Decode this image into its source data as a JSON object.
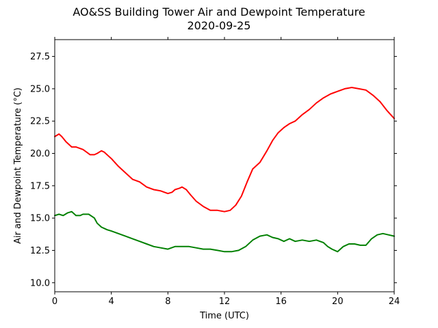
{
  "chart_data": {
    "type": "line",
    "title": "AO&SS Building Tower Air and Dewpoint Temperature",
    "subtitle": "2020-09-25",
    "xlabel": "Time (UTC)",
    "ylabel": "Air and Dewpoint Temperature (°C)",
    "xlim": [
      0,
      24
    ],
    "ylim": [
      9.3,
      28.8
    ],
    "xticks": [
      0,
      4,
      8,
      12,
      16,
      20,
      24
    ],
    "xtick_labels": [
      "0",
      "4",
      "8",
      "12",
      "16",
      "20",
      "24"
    ],
    "yticks": [
      10.0,
      12.5,
      15.0,
      17.5,
      20.0,
      22.5,
      25.0,
      27.5
    ],
    "ytick_labels": [
      "10.0",
      "12.5",
      "15.0",
      "17.5",
      "20.0",
      "22.5",
      "25.0",
      "27.5"
    ],
    "grid": false,
    "legend": "none",
    "series": [
      {
        "color": "#ff0000",
        "x": [
          0,
          0.3,
          0.5,
          0.8,
          1.2,
          1.5,
          2.0,
          2.5,
          2.8,
          3.0,
          3.3,
          3.5,
          3.8,
          4.0,
          4.5,
          5.0,
          5.5,
          6.0,
          6.5,
          7.0,
          7.5,
          8.0,
          8.3,
          8.5,
          8.8,
          9.0,
          9.3,
          9.6,
          10.0,
          10.5,
          11.0,
          11.5,
          12.0,
          12.4,
          12.8,
          13.2,
          13.6,
          14.0,
          14.5,
          15.0,
          15.4,
          15.8,
          16.2,
          16.6,
          17.0,
          17.5,
          18.0,
          18.5,
          19.0,
          19.5,
          20.0,
          20.5,
          21.0,
          21.5,
          22.0,
          22.5,
          23.0,
          23.5,
          24.0
        ],
        "y": [
          21.3,
          21.5,
          21.3,
          20.9,
          20.5,
          20.5,
          20.3,
          19.9,
          19.9,
          20.0,
          20.2,
          20.1,
          19.8,
          19.6,
          19.0,
          18.5,
          18.0,
          17.8,
          17.4,
          17.2,
          17.1,
          16.9,
          17.0,
          17.2,
          17.3,
          17.4,
          17.2,
          16.8,
          16.3,
          15.9,
          15.6,
          15.6,
          15.5,
          15.6,
          16.0,
          16.7,
          17.8,
          18.8,
          19.3,
          20.2,
          21.0,
          21.6,
          22.0,
          22.3,
          22.5,
          23.0,
          23.4,
          23.9,
          24.3,
          24.6,
          24.8,
          25.0,
          25.1,
          25.0,
          24.9,
          24.5,
          24.0,
          23.3,
          22.7
        ]
      },
      {
        "color": "#008000",
        "x": [
          0,
          0.3,
          0.6,
          0.9,
          1.2,
          1.5,
          1.8,
          2.0,
          2.4,
          2.8,
          3.0,
          3.3,
          3.7,
          4.0,
          4.5,
          5.0,
          5.5,
          6.0,
          6.5,
          7.0,
          7.5,
          8.0,
          8.5,
          9.0,
          9.5,
          10.0,
          10.5,
          11.0,
          11.5,
          12.0,
          12.5,
          13.0,
          13.5,
          14.0,
          14.5,
          15.0,
          15.4,
          15.8,
          16.2,
          16.6,
          17.0,
          17.5,
          18.0,
          18.5,
          19.0,
          19.3,
          19.6,
          20.0,
          20.4,
          20.8,
          21.2,
          21.6,
          22.0,
          22.4,
          22.8,
          23.2,
          23.6,
          24.0
        ],
        "y": [
          15.2,
          15.3,
          15.2,
          15.4,
          15.5,
          15.2,
          15.2,
          15.3,
          15.3,
          15.0,
          14.6,
          14.3,
          14.1,
          14.0,
          13.8,
          13.6,
          13.4,
          13.2,
          13.0,
          12.8,
          12.7,
          12.6,
          12.8,
          12.8,
          12.8,
          12.7,
          12.6,
          12.6,
          12.5,
          12.4,
          12.4,
          12.5,
          12.8,
          13.3,
          13.6,
          13.7,
          13.5,
          13.4,
          13.2,
          13.4,
          13.2,
          13.3,
          13.2,
          13.3,
          13.1,
          12.8,
          12.6,
          12.4,
          12.8,
          13.0,
          13.0,
          12.9,
          12.9,
          13.4,
          13.7,
          13.8,
          13.7,
          13.6
        ]
      }
    ]
  }
}
